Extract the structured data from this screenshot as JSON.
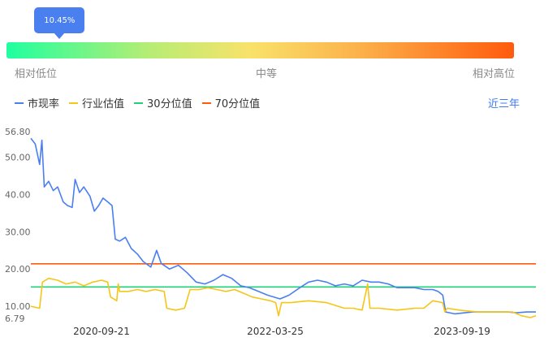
{
  "indicator": {
    "tooltip": "10.45%",
    "fraction": 0.1045
  },
  "scale": {
    "low": "相对低位",
    "mid": "中等",
    "high": "相对高位"
  },
  "legend": [
    {
      "label": "市现率",
      "color": "#4a7ff0"
    },
    {
      "label": "行业估值",
      "color": "#f5c518"
    },
    {
      "label": "30分位值",
      "color": "#20d07a"
    },
    {
      "label": "70分位值",
      "color": "#ff5b0c"
    }
  ],
  "period_label": "近三年",
  "chart_data": {
    "type": "line",
    "ylim": [
      6.79,
      56.8
    ],
    "y_ticks": [
      "56.80",
      "50.00",
      "40.00",
      "30.00",
      "20.00",
      "10.00",
      "6.79"
    ],
    "x_tick_labels": [
      "2020-09-21",
      "2022-03-25",
      "2023-09-19"
    ],
    "x_range": [
      "2019-11-20",
      "2024-08-20"
    ],
    "series": [
      {
        "name": "市现率",
        "color": "#4a7ff0",
        "points": [
          [
            "2019-11-20",
            55.0
          ],
          [
            "2019-12-05",
            53.5
          ],
          [
            "2019-12-20",
            48.0
          ],
          [
            "2019-12-28",
            54.5
          ],
          [
            "2020-01-05",
            42.0
          ],
          [
            "2020-01-20",
            43.5
          ],
          [
            "2020-02-05",
            41.0
          ],
          [
            "2020-02-20",
            42.0
          ],
          [
            "2020-03-10",
            38.0
          ],
          [
            "2020-03-25",
            37.0
          ],
          [
            "2020-04-10",
            36.5
          ],
          [
            "2020-04-20",
            44.0
          ],
          [
            "2020-05-05",
            40.5
          ],
          [
            "2020-05-20",
            42.0
          ],
          [
            "2020-06-10",
            39.5
          ],
          [
            "2020-06-25",
            35.5
          ],
          [
            "2020-07-10",
            37.0
          ],
          [
            "2020-07-25",
            39.0
          ],
          [
            "2020-08-10",
            38.0
          ],
          [
            "2020-08-25",
            37.0
          ],
          [
            "2020-09-05",
            28.0
          ],
          [
            "2020-09-20",
            27.5
          ],
          [
            "2020-10-10",
            28.5
          ],
          [
            "2020-10-30",
            25.5
          ],
          [
            "2020-11-20",
            24.0
          ],
          [
            "2020-12-10",
            22.0
          ],
          [
            "2021-01-05",
            20.5
          ],
          [
            "2021-01-25",
            25.0
          ],
          [
            "2021-02-10",
            21.5
          ],
          [
            "2021-03-10",
            20.0
          ],
          [
            "2021-04-10",
            21.0
          ],
          [
            "2021-05-10",
            19.0
          ],
          [
            "2021-06-10",
            16.5
          ],
          [
            "2021-07-10",
            16.0
          ],
          [
            "2021-08-10",
            17.0
          ],
          [
            "2021-09-10",
            18.5
          ],
          [
            "2021-10-10",
            17.5
          ],
          [
            "2021-11-10",
            15.5
          ],
          [
            "2021-12-10",
            15.0
          ],
          [
            "2022-01-10",
            14.0
          ],
          [
            "2022-02-10",
            13.0
          ],
          [
            "2022-03-25",
            12.0
          ],
          [
            "2022-04-25",
            13.0
          ],
          [
            "2022-06-01",
            15.0
          ],
          [
            "2022-07-01",
            16.5
          ],
          [
            "2022-08-01",
            17.0
          ],
          [
            "2022-09-01",
            16.5
          ],
          [
            "2022-10-01",
            15.5
          ],
          [
            "2022-11-01",
            16.0
          ],
          [
            "2022-12-01",
            15.5
          ],
          [
            "2023-01-01",
            17.0
          ],
          [
            "2023-02-01",
            16.5
          ],
          [
            "2023-03-01",
            16.5
          ],
          [
            "2023-04-01",
            16.0
          ],
          [
            "2023-05-01",
            15.0
          ],
          [
            "2023-06-01",
            15.0
          ],
          [
            "2023-07-01",
            15.0
          ],
          [
            "2023-08-01",
            14.5
          ],
          [
            "2023-09-01",
            14.5
          ],
          [
            "2023-09-19",
            14.0
          ],
          [
            "2023-10-05",
            13.0
          ],
          [
            "2023-10-15",
            8.5
          ],
          [
            "2023-11-15",
            8.0
          ],
          [
            "2024-01-15",
            8.5
          ],
          [
            "2024-03-15",
            8.5
          ],
          [
            "2024-05-15",
            8.5
          ],
          [
            "2024-06-15",
            8.3
          ],
          [
            "2024-07-20",
            8.5
          ],
          [
            "2024-08-20",
            8.5
          ]
        ]
      },
      {
        "name": "行业估值",
        "color": "#f5c518",
        "points": [
          [
            "2019-11-20",
            10.0
          ],
          [
            "2019-12-20",
            9.5
          ],
          [
            "2019-12-30",
            16.5
          ],
          [
            "2020-01-20",
            17.5
          ],
          [
            "2020-02-20",
            17.0
          ],
          [
            "2020-03-20",
            16.0
          ],
          [
            "2020-04-20",
            16.5
          ],
          [
            "2020-05-20",
            15.5
          ],
          [
            "2020-06-20",
            16.5
          ],
          [
            "2020-07-20",
            17.0
          ],
          [
            "2020-08-10",
            16.5
          ],
          [
            "2020-08-20",
            12.5
          ],
          [
            "2020-09-10",
            11.5
          ],
          [
            "2020-09-15",
            16.0
          ],
          [
            "2020-09-20",
            14.0
          ],
          [
            "2020-10-20",
            14.0
          ],
          [
            "2020-11-20",
            14.5
          ],
          [
            "2020-12-20",
            14.0
          ],
          [
            "2021-01-20",
            14.5
          ],
          [
            "2021-02-20",
            14.0
          ],
          [
            "2021-03-01",
            9.5
          ],
          [
            "2021-04-01",
            9.0
          ],
          [
            "2021-05-01",
            9.5
          ],
          [
            "2021-05-20",
            14.5
          ],
          [
            "2021-06-20",
            14.5
          ],
          [
            "2021-07-20",
            15.0
          ],
          [
            "2021-08-20",
            14.5
          ],
          [
            "2021-09-20",
            14.0
          ],
          [
            "2021-10-20",
            14.5
          ],
          [
            "2021-11-20",
            13.5
          ],
          [
            "2021-12-20",
            12.5
          ],
          [
            "2022-01-20",
            12.0
          ],
          [
            "2022-02-20",
            11.5
          ],
          [
            "2022-03-10",
            11.0
          ],
          [
            "2022-03-20",
            7.5
          ],
          [
            "2022-03-30",
            11.0
          ],
          [
            "2022-05-01",
            11.0
          ],
          [
            "2022-07-01",
            11.5
          ],
          [
            "2022-09-01",
            11.0
          ],
          [
            "2022-11-01",
            9.5
          ],
          [
            "2022-12-01",
            9.5
          ],
          [
            "2023-01-01",
            9.0
          ],
          [
            "2023-01-20",
            16.0
          ],
          [
            "2023-01-28",
            9.5
          ],
          [
            "2023-03-01",
            9.5
          ],
          [
            "2023-05-01",
            9.0
          ],
          [
            "2023-07-01",
            9.5
          ],
          [
            "2023-08-01",
            9.5
          ],
          [
            "2023-09-01",
            11.5
          ],
          [
            "2023-10-05",
            11.0
          ],
          [
            "2023-10-12",
            8.5
          ],
          [
            "2023-10-20",
            9.5
          ],
          [
            "2023-12-01",
            9.0
          ],
          [
            "2024-02-01",
            8.5
          ],
          [
            "2024-04-01",
            8.5
          ],
          [
            "2024-06-01",
            8.5
          ],
          [
            "2024-07-01",
            7.5
          ],
          [
            "2024-08-01",
            7.0
          ],
          [
            "2024-08-20",
            7.5
          ]
        ]
      }
    ],
    "reference_lines": [
      {
        "name": "30分位值",
        "color": "#20d07a",
        "y": 15.2
      },
      {
        "name": "70分位值",
        "color": "#ff5b0c",
        "y": 21.4
      }
    ]
  }
}
